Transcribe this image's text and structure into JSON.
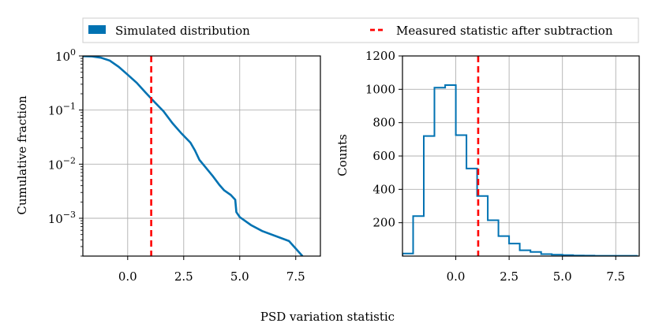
{
  "legend": {
    "simulated_label": "Simulated distribution",
    "measured_label": "Measured statistic after subtraction",
    "simulated_color": "#0072b2",
    "measured_color": "#ff0000",
    "placement": "top"
  },
  "shared_xlabel": "PSD variation statistic",
  "chart_data": [
    {
      "type": "line",
      "scale_y": "log",
      "ylabel": "Cumulative fraction",
      "xlim": [
        -2.0,
        8.6
      ],
      "ylim": [
        0.0002,
        1.0
      ],
      "grid": true,
      "xticks": [
        0.0,
        2.5,
        5.0,
        7.5
      ],
      "xtick_labels": [
        "0.0",
        "2.5",
        "5.0",
        "7.5"
      ],
      "yticks": [
        1,
        0.1,
        0.01,
        0.001
      ],
      "ytick_labels": [
        {
          "base": "10",
          "exp": "0"
        },
        {
          "base": "10",
          "exp": "−1"
        },
        {
          "base": "10",
          "exp": "−2"
        },
        {
          "base": "10",
          "exp": "−3"
        }
      ],
      "series": [
        {
          "name": "Simulated distribution",
          "color": "#0072b2",
          "x": [
            -2.5,
            -1.6,
            -1.2,
            -0.8,
            -0.4,
            0.0,
            0.4,
            0.8,
            1.2,
            1.6,
            2.0,
            2.4,
            2.8,
            3.0,
            3.2,
            3.5,
            3.8,
            4.1,
            4.3,
            4.6,
            4.8,
            4.85,
            5.0,
            5.5,
            6.0,
            7.2,
            7.8
          ],
          "y": [
            1.0,
            0.98,
            0.93,
            0.82,
            0.63,
            0.45,
            0.32,
            0.21,
            0.14,
            0.095,
            0.057,
            0.037,
            0.025,
            0.018,
            0.012,
            0.0085,
            0.006,
            0.0041,
            0.0033,
            0.0027,
            0.0022,
            0.0013,
            0.00105,
            0.00075,
            0.00058,
            0.00038,
            0.0002
          ]
        }
      ],
      "vline": {
        "name": "Measured statistic after subtraction",
        "x": 1.05,
        "color": "#ff0000",
        "style": "dashed"
      }
    },
    {
      "type": "histogram",
      "ylabel": "Counts",
      "xlim": [
        -2.5,
        8.6
      ],
      "ylim": [
        0,
        1200
      ],
      "grid": true,
      "xticks": [
        0.0,
        2.5,
        5.0,
        7.5
      ],
      "xtick_labels": [
        "0.0",
        "2.5",
        "5.0",
        "7.5"
      ],
      "yticks": [
        200,
        400,
        600,
        800,
        1000,
        1200
      ],
      "ytick_labels": [
        "200",
        "400",
        "600",
        "800",
        "1000",
        "1200"
      ],
      "bin_edges": [
        -2.5,
        -2.0,
        -1.5,
        -1.0,
        -0.5,
        0.0,
        0.5,
        1.0,
        1.5,
        2.0,
        2.5,
        3.0,
        3.5,
        4.0,
        4.5,
        5.0,
        5.5,
        6.0,
        6.5,
        7.0,
        7.5,
        8.0,
        8.5
      ],
      "counts": [
        15,
        240,
        720,
        1010,
        1025,
        725,
        525,
        360,
        215,
        120,
        75,
        35,
        25,
        12,
        8,
        6,
        4,
        3,
        2,
        2,
        2,
        2
      ],
      "series": [
        {
          "name": "Simulated distribution",
          "color": "#0072b2"
        }
      ],
      "vline": {
        "name": "Measured statistic after subtraction",
        "x": 1.05,
        "color": "#ff0000",
        "style": "dashed"
      }
    }
  ]
}
